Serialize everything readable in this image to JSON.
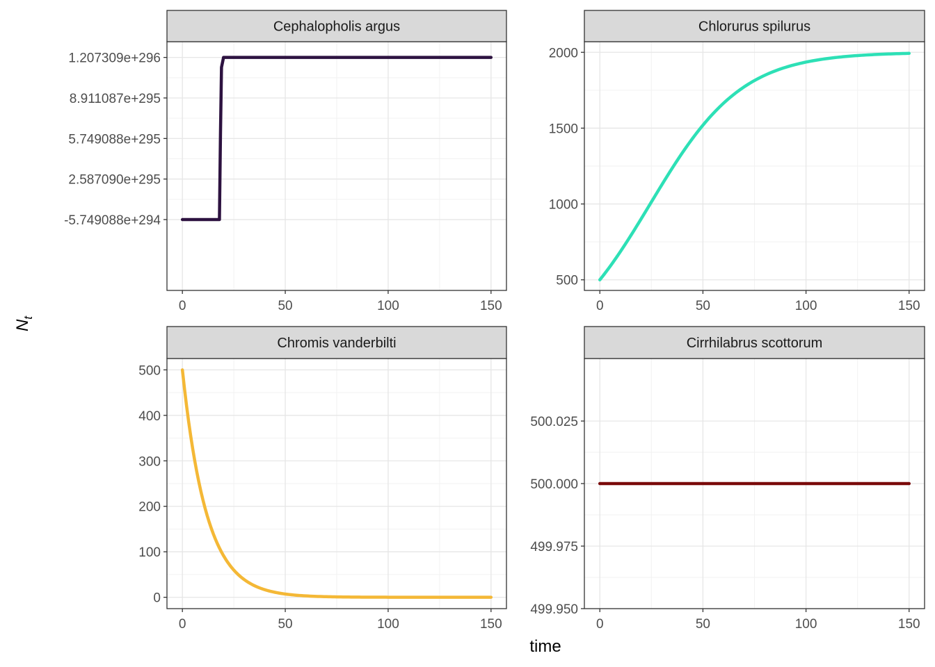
{
  "chart_data": {
    "type": "line",
    "xlabel": "time",
    "ylabel": "N",
    "ylabel_subscript": "t",
    "panels": [
      {
        "title": "Cephalopholis argus",
        "color": "#2d1240",
        "xlim": [
          -7.5,
          157.5
        ],
        "xticks": [
          0,
          50,
          100,
          150
        ],
        "ylim": [
          -6.1,
          13.3
        ],
        "y_scale_note": "values in units of 1e295",
        "yticks": [
          -0.5749088,
          2.58709,
          5.749088,
          8.911087,
          12.07309
        ],
        "ytick_labels": [
          "-5.749088e+294",
          "2.587090e+295",
          "5.749088e+295",
          "8.911087e+295",
          "1.207309e+296"
        ],
        "series": [
          {
            "x": [
              0,
              18,
              18.5,
              19,
              20,
              150
            ],
            "y": [
              -0.5749088,
              -0.5749088,
              6.0,
              11.3,
              12.07309,
              12.07309
            ]
          }
        ]
      },
      {
        "title": "Chlorurus spilurus",
        "color": "#2de0b6",
        "xlim": [
          -7.5,
          157.5
        ],
        "xticks": [
          0,
          50,
          100,
          150
        ],
        "ylim": [
          430,
          2070
        ],
        "yticks": [
          500,
          1000,
          1500,
          2000
        ],
        "ytick_labels": [
          "500",
          "1000",
          "1500",
          "2000"
        ],
        "series": [
          {
            "logistic": {
              "K": 2000,
              "N0": 500,
              "r": 0.045,
              "tmax": 150
            }
          }
        ]
      },
      {
        "title": "Chromis vanderbilti",
        "color": "#f4b836",
        "xlim": [
          -7.5,
          157.5
        ],
        "xticks": [
          0,
          50,
          100,
          150
        ],
        "ylim": [
          -25,
          525
        ],
        "yticks": [
          0,
          100,
          200,
          300,
          400,
          500
        ],
        "ytick_labels": [
          "0",
          "100",
          "200",
          "300",
          "400",
          "500"
        ],
        "series": [
          {
            "decay": {
              "N0": 500,
              "r": 0.085,
              "tmax": 150
            }
          }
        ]
      },
      {
        "title": "Cirrhilabrus scottorum",
        "color": "#7a0a0a",
        "xlim": [
          -7.5,
          157.5
        ],
        "xticks": [
          0,
          50,
          100,
          150
        ],
        "ylim": [
          499.95,
          500.05
        ],
        "yticks": [
          499.95,
          499.975,
          500.0,
          500.025
        ],
        "ytick_labels": [
          "499.950",
          "499.975",
          "500.000",
          "500.025"
        ],
        "series": [
          {
            "x": [
              0,
              150
            ],
            "y": [
              500.0,
              500.0
            ]
          }
        ]
      }
    ]
  }
}
